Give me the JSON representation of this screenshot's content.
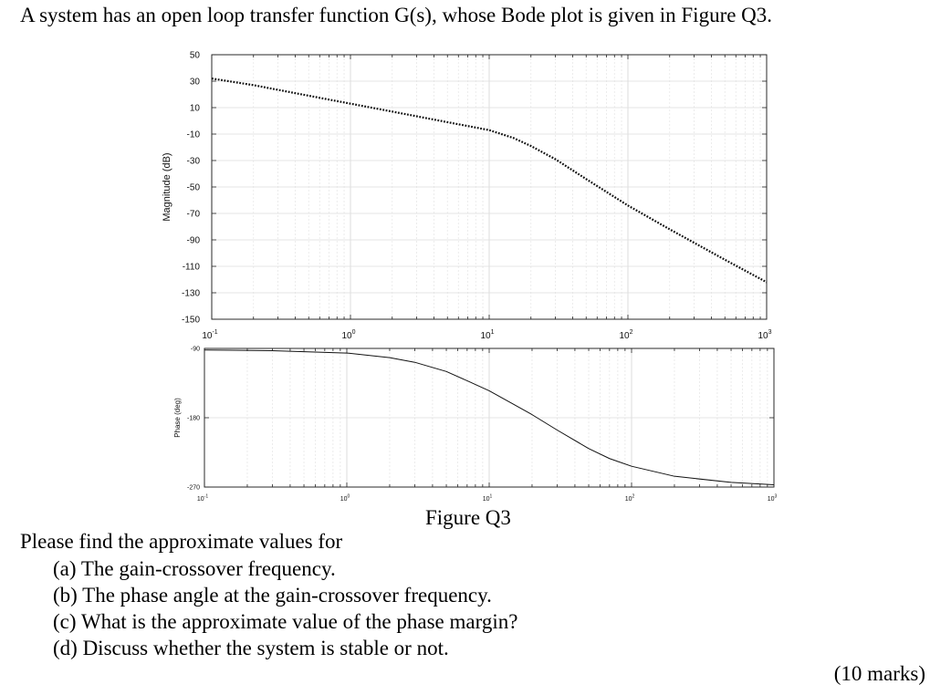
{
  "question": {
    "intro": "A system has an open loop transfer function G(s), whose Bode plot is given in Figure Q3.",
    "figure_caption": "Figure Q3",
    "prompt": "Please find the approximate values for",
    "parts": [
      "(a) The gain-crossover frequency.",
      "(b) The phase angle at the gain-crossover frequency.",
      "(c) What is the approximate value of the phase margin?",
      "(d) Discuss whether the system is stable or not."
    ],
    "marks": "(10 marks)"
  },
  "chart_data": [
    {
      "type": "line",
      "title": "",
      "xlabel": "",
      "ylabel": "Magnitude (dB)",
      "xscale": "log",
      "xlim": [
        0.1,
        1000
      ],
      "ylim": [
        -150,
        50
      ],
      "grid": true,
      "x_ticks": [
        0.1,
        1,
        10,
        100,
        1000
      ],
      "x_tick_labels": [
        {
          "base": "10",
          "exp": "-1"
        },
        {
          "base": "10",
          "exp": "0"
        },
        {
          "base": "10",
          "exp": "1"
        },
        {
          "base": "10",
          "exp": "2"
        },
        {
          "base": "10",
          "exp": "3"
        }
      ],
      "y_ticks": [
        50,
        30,
        10,
        -10,
        -30,
        -50,
        -70,
        -90,
        -110,
        -130,
        -150
      ],
      "line_style": "dotted",
      "series": [
        {
          "x": [
            0.1,
            0.2,
            0.5,
            1,
            2,
            5,
            10,
            15,
            20,
            30,
            50,
            100,
            200,
            500,
            1000
          ],
          "y": [
            32,
            27,
            19,
            13,
            7,
            -1,
            -7,
            -13,
            -19,
            -29,
            -44,
            -64,
            -82,
            -105,
            -122
          ]
        }
      ]
    },
    {
      "type": "line",
      "title": "",
      "xlabel": "",
      "ylabel": "Phase (deg)",
      "xscale": "log",
      "xlim": [
        0.1,
        1000
      ],
      "ylim": [
        -270,
        -90
      ],
      "grid": true,
      "x_ticks": [
        0.1,
        1,
        10,
        100,
        1000
      ],
      "x_tick_labels": [
        {
          "base": "10",
          "exp": "-1"
        },
        {
          "base": "10",
          "exp": "0"
        },
        {
          "base": "10",
          "exp": "1"
        },
        {
          "base": "10",
          "exp": "2"
        },
        {
          "base": "10",
          "exp": "3"
        }
      ],
      "y_ticks": [
        -90,
        -180,
        -270
      ],
      "line_style": "solid",
      "series": [
        {
          "x": [
            0.1,
            0.3,
            1,
            2,
            3,
            5,
            7,
            10,
            15,
            20,
            30,
            50,
            70,
            100,
            200,
            500,
            1000
          ],
          "y": [
            -92,
            -93,
            -96,
            -102,
            -108,
            -120,
            -132,
            -145,
            -163,
            -176,
            -196,
            -220,
            -233,
            -243,
            -256,
            -264,
            -267
          ]
        }
      ]
    }
  ]
}
